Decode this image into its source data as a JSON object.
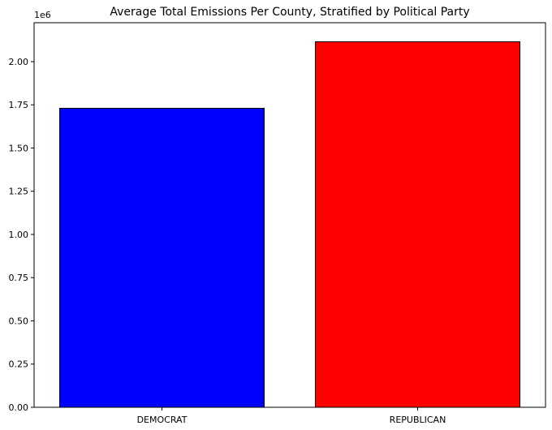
{
  "chart_data": {
    "type": "bar",
    "title": "Average Total Emissions Per County, Stratified by Political Party",
    "xlabel": "",
    "ylabel": "",
    "categories": [
      "DEMOCRAT",
      "REPUBLICAN"
    ],
    "values": [
      1730000,
      2115000
    ],
    "bar_colors": [
      "#0000ff",
      "#ff0000"
    ],
    "edge_color": "#000000",
    "ylim": [
      0,
      2225000
    ],
    "y_offset_label": "1e6",
    "y_ticks": [
      {
        "value": 0,
        "label": "0.00"
      },
      {
        "value": 250000,
        "label": "0.25"
      },
      {
        "value": 500000,
        "label": "0.50"
      },
      {
        "value": 750000,
        "label": "0.75"
      },
      {
        "value": 1000000,
        "label": "1.00"
      },
      {
        "value": 1250000,
        "label": "1.25"
      },
      {
        "value": 1500000,
        "label": "1.50"
      },
      {
        "value": 1750000,
        "label": "1.75"
      },
      {
        "value": 2000000,
        "label": "2.00"
      }
    ],
    "grid": false,
    "legend": "none"
  }
}
